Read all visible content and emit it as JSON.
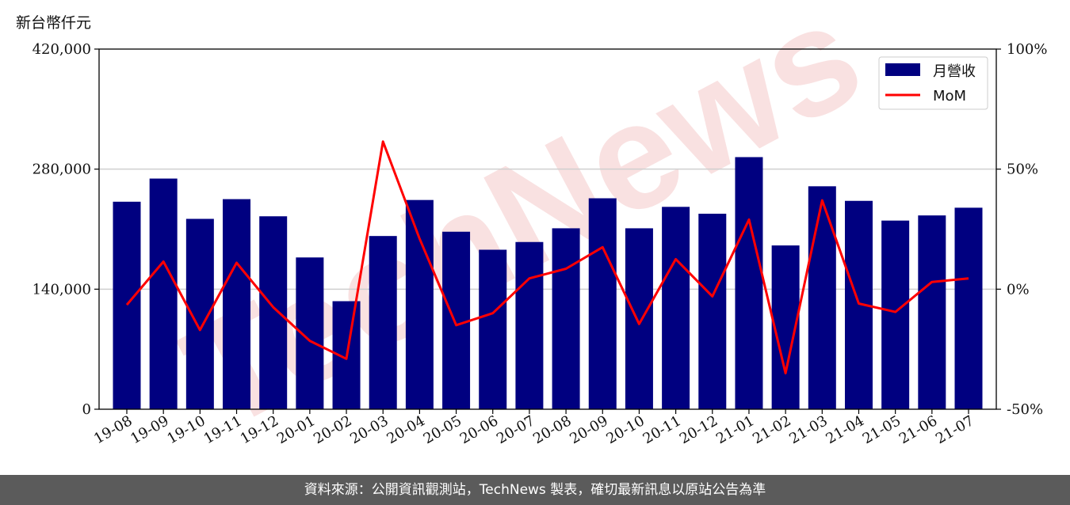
{
  "unit_label": "新台幣仟元",
  "watermark": "TechNews",
  "footer": "資料來源：公開資訊觀測站，TechNews 製表，確切最新訊息以原站公告為準",
  "colors": {
    "bar": "#000080",
    "line": "#ff0000",
    "grid": "#cfcfcf",
    "watermark": "#f7d7d7",
    "footer_bg": "#5b5b5b"
  },
  "chart_data": {
    "type": "bar",
    "categories": [
      "19-08",
      "19-09",
      "19-10",
      "19-11",
      "19-12",
      "20-01",
      "20-02",
      "20-03",
      "20-04",
      "20-05",
      "20-06",
      "20-07",
      "20-08",
      "20-09",
      "20-10",
      "20-11",
      "20-12",
      "21-01",
      "21-02",
      "21-03",
      "21-04",
      "21-05",
      "21-06",
      "21-07"
    ],
    "series": [
      {
        "name": "月營收",
        "type": "bar",
        "axis": "left",
        "values": [
          242000,
          269000,
          222000,
          245000,
          225000,
          177000,
          126000,
          202000,
          244000,
          207000,
          186000,
          195000,
          211000,
          246000,
          211000,
          236000,
          228000,
          294000,
          191000,
          260000,
          243000,
          220000,
          226000,
          235000
        ]
      },
      {
        "name": "MoM",
        "type": "line",
        "axis": "right",
        "values": [
          -6.5,
          11.5,
          -17.0,
          11.0,
          -7.5,
          -21.5,
          -29.0,
          61.5,
          21.0,
          -15.0,
          -10.0,
          4.5,
          8.5,
          17.5,
          -14.5,
          12.5,
          -3.0,
          29.0,
          -35.0,
          37.0,
          -6.0,
          -9.5,
          3.0,
          4.5
        ]
      }
    ],
    "y_left": {
      "ylim": [
        0,
        420000
      ],
      "ticks": [
        "0",
        "140,000",
        "280,000",
        "420,000"
      ],
      "tick_values": [
        0,
        140000,
        280000,
        420000
      ]
    },
    "y_right": {
      "ylim": [
        -50,
        100
      ],
      "ticks": [
        "-50%",
        "0%",
        "50%",
        "100%"
      ],
      "tick_values": [
        -50,
        0,
        50,
        100
      ]
    },
    "grid": "horizontal",
    "legend_position": "top-right"
  }
}
